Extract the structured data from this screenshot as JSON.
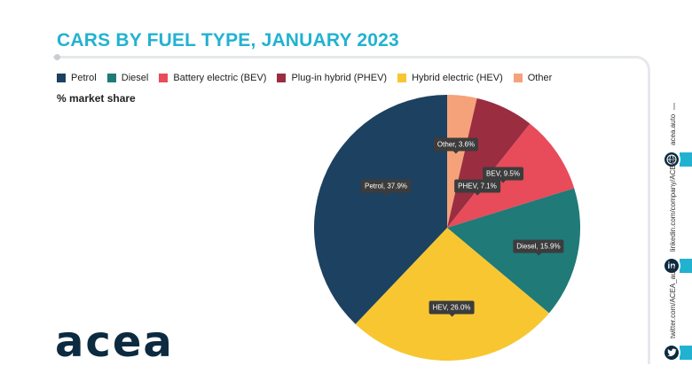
{
  "title": "CARS BY FUEL TYPE, JANUARY 2023",
  "subtitle": "% market share",
  "legend": [
    {
      "label": "Petrol",
      "color": "#1d4160"
    },
    {
      "label": "Diesel",
      "color": "#1f7a78"
    },
    {
      "label": "Battery electric (BEV)",
      "color": "#e84b59"
    },
    {
      "label": "Plug-in hybrid (PHEV)",
      "color": "#9b2d41"
    },
    {
      "label": "Hybrid electric (HEV)",
      "color": "#f7c631"
    },
    {
      "label": "Other",
      "color": "#f5a27a"
    }
  ],
  "chart_data": {
    "type": "pie",
    "title": "CARS BY FUEL TYPE, JANUARY 2023",
    "ylabel": "% market share",
    "slices": [
      {
        "name": "Other",
        "value": 3.6,
        "label": "Other, 3.6%",
        "color": "#f5a27a"
      },
      {
        "name": "PHEV",
        "value": 7.1,
        "label": "PHEV, 7.1%",
        "color": "#9b2d41"
      },
      {
        "name": "BEV",
        "value": 9.5,
        "label": "BEV, 9.5%",
        "color": "#e84b59"
      },
      {
        "name": "Diesel",
        "value": 15.9,
        "label": "Diesel, 15.9%",
        "color": "#1f7a78"
      },
      {
        "name": "HEV",
        "value": 26.0,
        "label": "HEV, 26.0%",
        "color": "#f7c631"
      },
      {
        "name": "Petrol",
        "value": 37.9,
        "label": "Petrol, 37.9%",
        "color": "#1d4160"
      }
    ]
  },
  "brand": {
    "logo": "acea",
    "accent": "#22b2d1"
  },
  "social": {
    "website": "acea.auto",
    "linkedin": "linkedin.com/company/ACEA/",
    "twitter": "twitter.com/ACEA_auto",
    "web_icon": "globe-icon",
    "linkedin_icon": "linkedin-icon",
    "twitter_icon": "twitter-icon",
    "linkedin_glyph": "in"
  }
}
